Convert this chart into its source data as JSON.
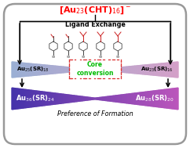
{
  "background_color": "#ffffff",
  "border_color": "#999999",
  "title_text": "[Au$_{23}$(CHT)$_{16}$]$^-$",
  "title_color": "#ff0000",
  "ligand_exchange_text": "Ligand Exchange",
  "top_left_label": "Au$_{25}$(SR)$_{18}$",
  "top_right_label": "Au$_{23}$(SR)$_{16}$",
  "bottom_left_label": "Au$_{36}$(SR)$_{24}$",
  "bottom_right_label": "Au$_{28}$(SR)$_{20}$",
  "core_conversion_text": "Core\nconversion",
  "core_conversion_color": "#00bb00",
  "preference_text": "Preference of Formation",
  "top_band_blue": "#9aafd4",
  "top_band_pink": "#d4a0c8",
  "bottom_band_blue": "#4433aa",
  "bottom_band_pink": "#bb55bb",
  "bottom_band_mid": "#886699"
}
